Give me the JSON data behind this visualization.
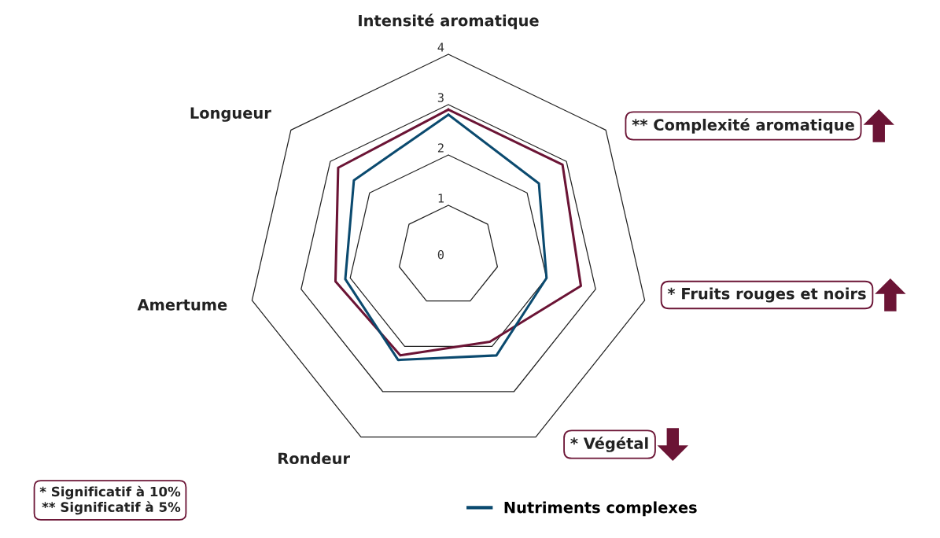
{
  "chart_data": {
    "type": "radar",
    "categories": [
      "Intensité aromatique",
      "** Complexité aromatique",
      "* Fruits rouges et noirs",
      "* Végétal",
      "Rondeur",
      "Amertume",
      "Longueur"
    ],
    "series": [
      {
        "color": "#6b1435",
        "values": [
          2.9,
          2.9,
          2.7,
          1.9,
          2.2,
          2.3,
          2.8
        ]
      },
      {
        "name": "Nutriments complexes",
        "color": "#0b4a6f",
        "values": [
          2.8,
          2.3,
          2.0,
          2.2,
          2.3,
          2.1,
          2.4
        ]
      }
    ],
    "ylim": [
      0,
      4
    ],
    "yticks": [
      0,
      1,
      2,
      3,
      4
    ],
    "grid": true,
    "legend": "bottom",
    "line_style": "solid",
    "marker": "none",
    "annotations": [
      "* Significatif à 10%\n** Significatif à 5%"
    ]
  }
}
